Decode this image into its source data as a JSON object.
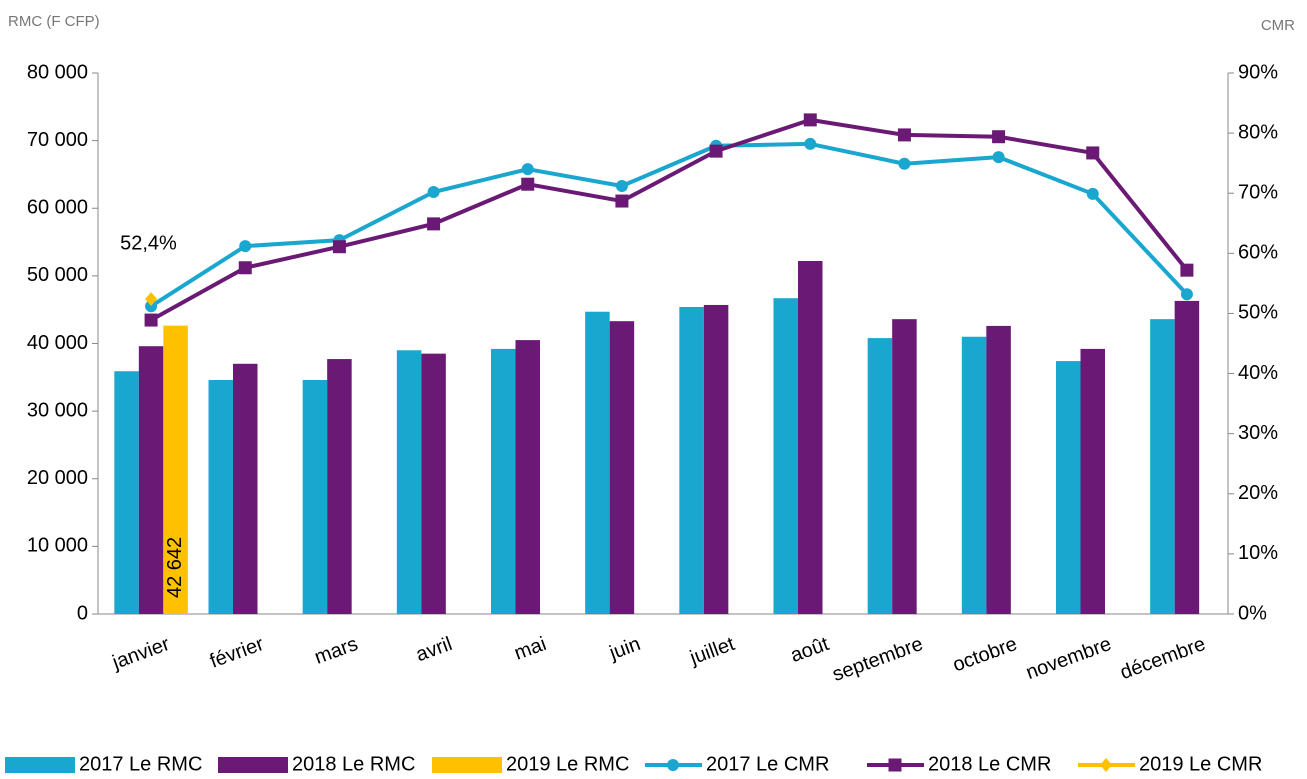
{
  "chart_data": {
    "type": "bar",
    "y_label": "RMC (F CFP)",
    "y2_label": "CMR",
    "categories": [
      "janvier",
      "février",
      "mars",
      "avril",
      "mai",
      "juin",
      "juillet",
      "août",
      "septembre",
      "octobre",
      "novembre",
      "décembre"
    ],
    "series": [
      {
        "name": "2017 Le RMC",
        "type": "bar",
        "color": "#1aa7cf",
        "values": [
          35900,
          34600,
          34600,
          39000,
          39200,
          44700,
          45400,
          46700,
          40800,
          41000,
          37400,
          43600
        ]
      },
      {
        "name": "2018 Le RMC",
        "type": "bar",
        "color": "#6a1a74",
        "values": [
          39600,
          37000,
          37700,
          38500,
          40500,
          43300,
          45700,
          52200,
          43600,
          42600,
          39200,
          46300
        ]
      },
      {
        "name": "2019 Le RMC",
        "type": "bar",
        "color": "#ffc000",
        "values": [
          42642,
          null,
          null,
          null,
          null,
          null,
          null,
          null,
          null,
          null,
          null,
          null
        ],
        "value_labels": [
          "42 642",
          null,
          null,
          null,
          null,
          null,
          null,
          null,
          null,
          null,
          null,
          null
        ]
      },
      {
        "name": "2017 Le CMR",
        "type": "line",
        "marker": "circle",
        "axis": "y2",
        "color": "#1aa7cf",
        "values": [
          51.2,
          61.2,
          62.2,
          70.2,
          74.0,
          71.2,
          77.9,
          78.2,
          74.9,
          76.0,
          69.9,
          53.2
        ]
      },
      {
        "name": "2018 Le CMR",
        "type": "line",
        "marker": "square",
        "axis": "y2",
        "color": "#6a1a74",
        "values": [
          48.9,
          57.6,
          61.1,
          64.9,
          71.5,
          68.7,
          77.0,
          82.2,
          79.7,
          79.4,
          76.7,
          57.2
        ]
      },
      {
        "name": "2019 Le CMR",
        "type": "line",
        "marker": "diamond",
        "axis": "y2",
        "color": "#ffc000",
        "values": [
          52.4,
          null,
          null,
          null,
          null,
          null,
          null,
          null,
          null,
          null,
          null,
          null
        ],
        "value_labels": [
          "52,4%",
          null,
          null,
          null,
          null,
          null,
          null,
          null,
          null,
          null,
          null,
          null
        ]
      }
    ],
    "ylim": [
      0,
      80000
    ],
    "yticks": [
      0,
      {
        "value": 10000,
        "label": "10 000"
      },
      {
        "value": 20000,
        "label": "20 000"
      },
      {
        "value": 30000,
        "label": "30 000"
      },
      {
        "value": 40000,
        "label": "40 000"
      },
      {
        "value": 50000,
        "label": "50 000"
      },
      {
        "value": 60000,
        "label": "60 000"
      },
      {
        "value": 70000,
        "label": "70 000"
      },
      {
        "value": 80000,
        "label": "80 000"
      }
    ],
    "y2lim": [
      0,
      90
    ],
    "y2ticks": [
      {
        "value": 0,
        "label": "0%"
      },
      {
        "value": 10,
        "label": "10%"
      },
      {
        "value": 20,
        "label": "20%"
      },
      {
        "value": 30,
        "label": "30%"
      },
      {
        "value": 40,
        "label": "40%"
      },
      {
        "value": 50,
        "label": "50%"
      },
      {
        "value": 60,
        "label": "60%"
      },
      {
        "value": 70,
        "label": "70%"
      },
      {
        "value": 80,
        "label": "80%"
      },
      {
        "value": 90,
        "label": "90%"
      }
    ],
    "grid": false,
    "legend": "bottom"
  }
}
